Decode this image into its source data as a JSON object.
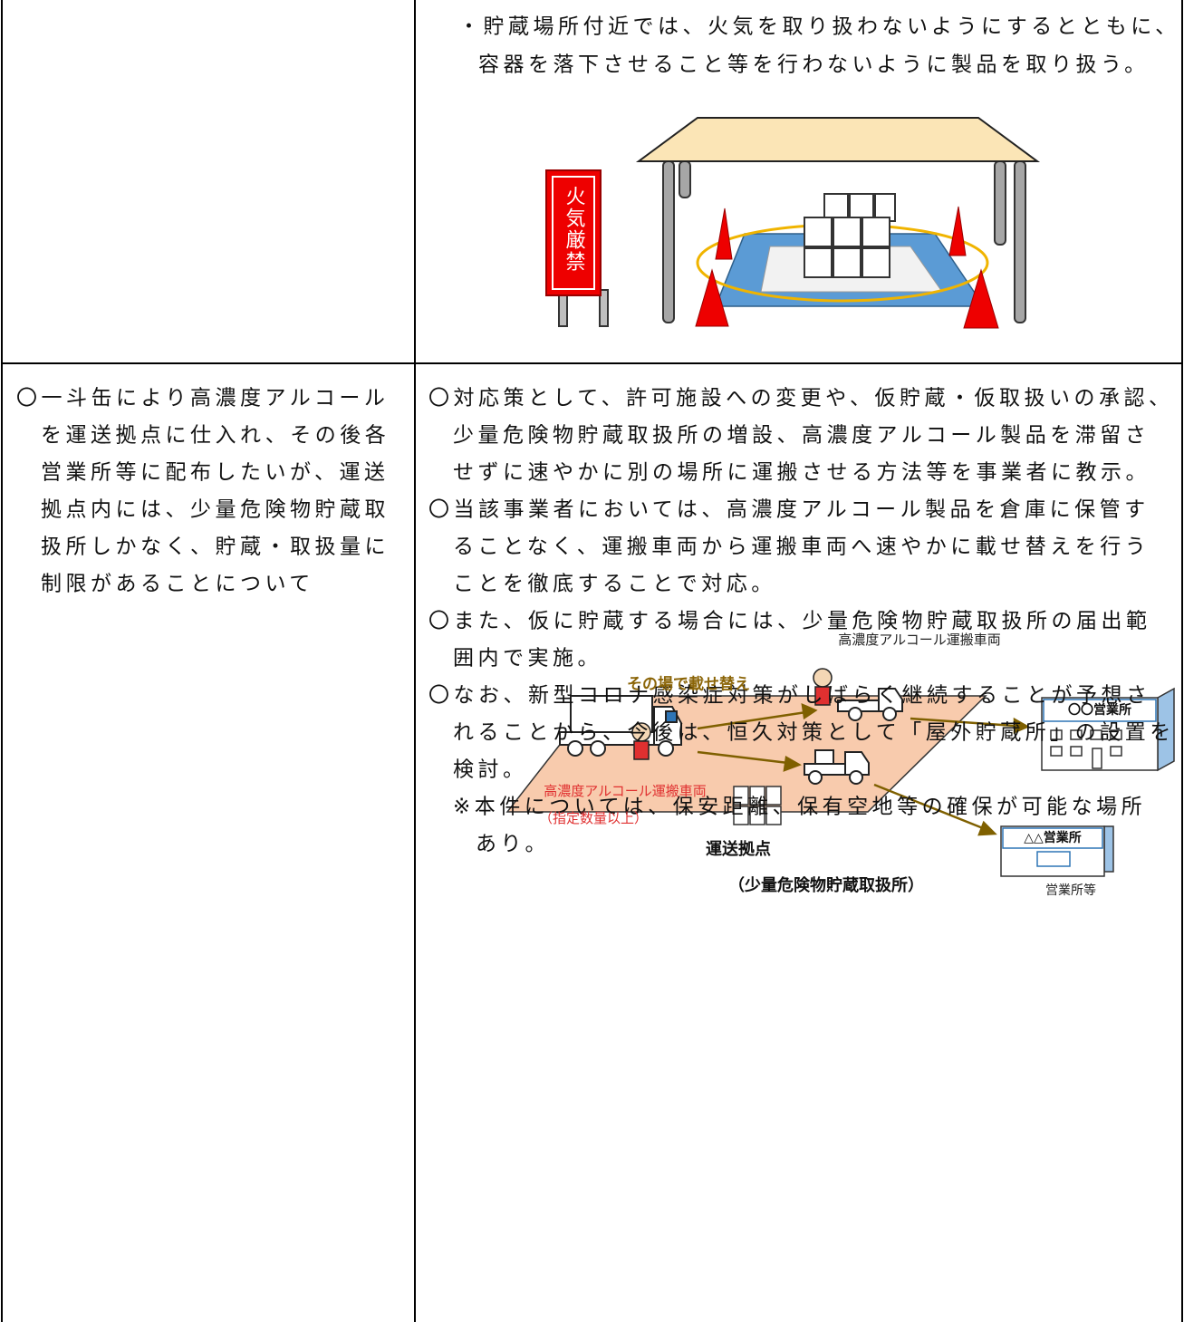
{
  "rows": [
    {
      "right": {
        "lines": [
          "・貯蔵場所付近では、火気を取り扱わないようにするとともに、",
          "容器を落下させること等を行わないように製品を取り扱う。"
        ],
        "figure": {
          "sign": "火気厳禁"
        }
      }
    },
    {
      "left": {
        "lines": [
          "〇一斗缶により高濃度アルコール",
          "を運送拠点に仕入れ、その後各",
          "営業所等に配布したいが、運送",
          "拠点内には、少量危険物貯蔵取",
          "扱所しかなく、貯蔵・取扱量に",
          "制限があることについて"
        ]
      },
      "right": {
        "lines": [
          "〇対応策として、許可施設への変更や、仮貯蔵・仮取扱いの承認、",
          "少量危険物貯蔵取扱所の増設、高濃度アルコール製品を滞留さ",
          "せずに速やかに別の場所に運搬させる方法等を事業者に教示。",
          "〇当該事業者においては、高濃度アルコール製品を倉庫に保管す",
          "ることなく、運搬車両から運搬車両へ速やかに載せ替えを行う",
          "ことを徹底することで対応。",
          "〇また、仮に貯蔵する場合には、少量危険物貯蔵取扱所の届出範",
          "囲内で実施。",
          "〇なお、新型コロナ感染症対策がしばらく継続することが予想さ",
          "れることから、今後は、恒久対策として「屋外貯蔵所」の設置を",
          "検討。",
          "※本件については、保安距離、保有空地等の確保が可能な場所",
          "あり。"
        ],
        "figure": {
          "vehicle_label_top": "高濃度アルコール運搬車両",
          "transfer_label": "その場で載せ替え",
          "office_a": "〇〇営業所",
          "office_b": "△△営業所",
          "vehicle_label": "高濃度アルコール運搬車両",
          "vehicle_note": "（指定数量以上）",
          "hub": "運送拠点",
          "hub_note": "（少量危険物貯蔵取扱所）",
          "offices": "営業所等"
        }
      }
    }
  ]
}
